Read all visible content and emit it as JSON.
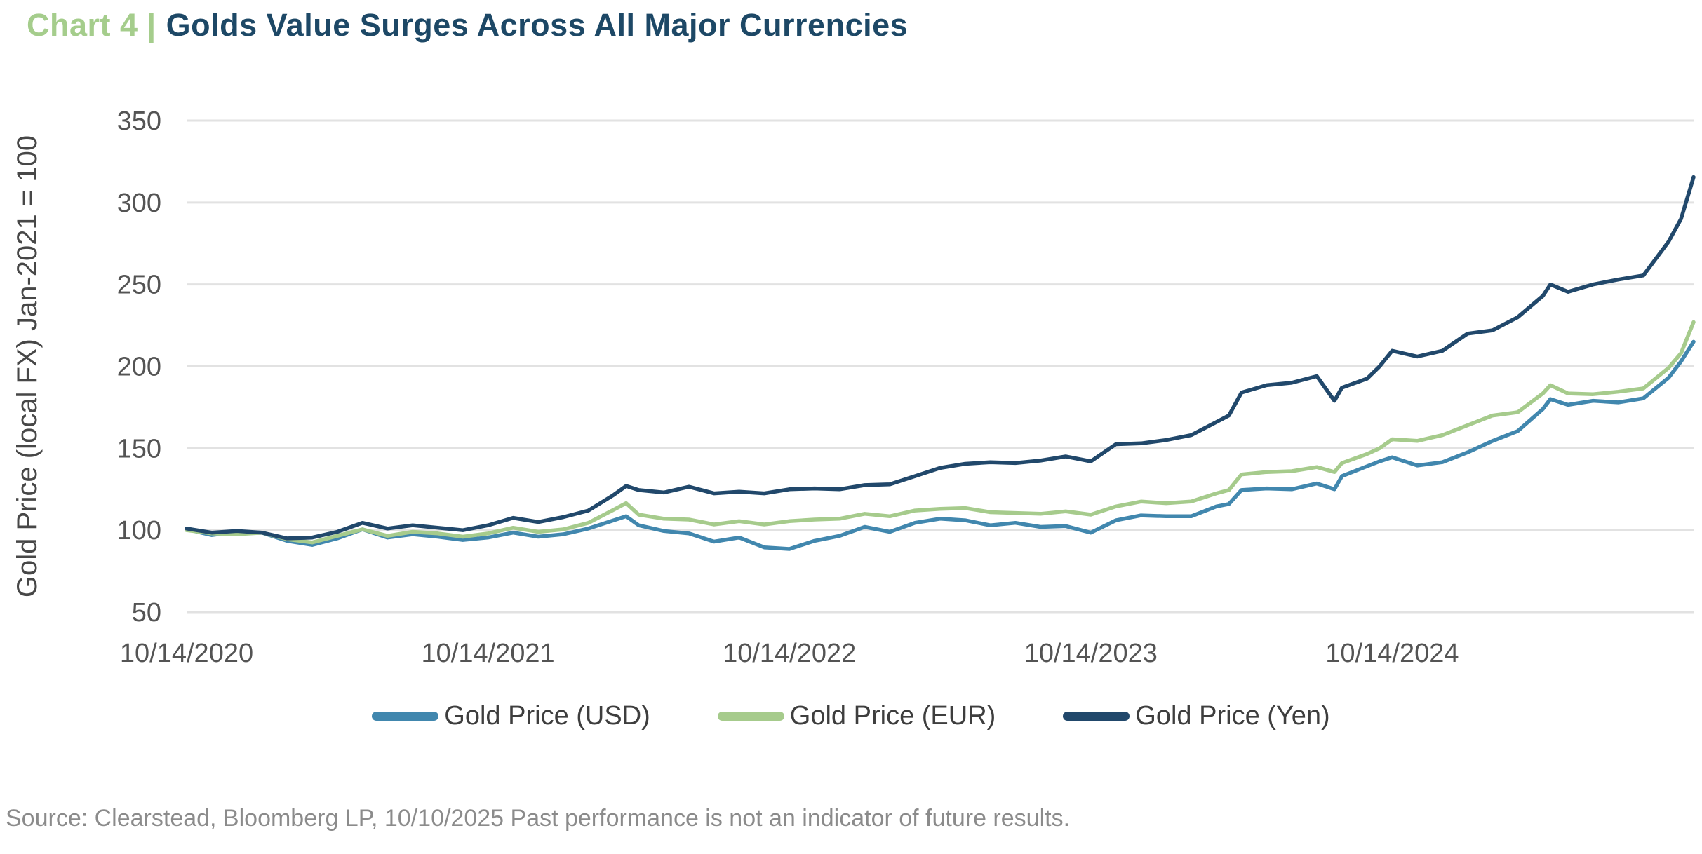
{
  "title": {
    "prefix": "Chart 4 |",
    "main": "Golds Value Surges Across All Major Currencies"
  },
  "source_note": "Source: Clearstead, Bloomberg LP, 10/10/2025 Past performance is not an indicator of future results.",
  "colors": {
    "title_prefix": "#a5cd8c",
    "title_main": "#1d4866",
    "usd_line": "#4187ae",
    "eur_line": "#a6cb8c",
    "yen_line": "#21486b",
    "gridline": "#e2e2e2",
    "tick_text": "#545454",
    "axis_title_text": "#474747",
    "legend_text": "#3e3e3e",
    "source_text": "#8b8b8b"
  },
  "chart_data": {
    "type": "line",
    "title": "Golds Value Surges Across All Major Currencies",
    "xlabel": "",
    "ylabel": "Gold Price (local FX) Jan-2021 = 100",
    "ylim": [
      50,
      350
    ],
    "y_ticks": [
      350,
      300,
      250,
      200,
      150,
      100,
      50
    ],
    "x_range_months": [
      0,
      60
    ],
    "x_unit": "months since 10/14/2020",
    "x_ticks": [
      {
        "label": "10/14/2020",
        "month": 0
      },
      {
        "label": "10/14/2021",
        "month": 12
      },
      {
        "label": "10/14/2022",
        "month": 24
      },
      {
        "label": "10/14/2023",
        "month": 36
      },
      {
        "label": "10/14/2024",
        "month": 48
      }
    ],
    "grid": "horizontal",
    "legend_position": "bottom",
    "x": [
      0,
      1,
      2,
      3,
      4,
      5,
      6,
      7,
      8,
      9,
      10,
      11,
      12,
      13,
      14,
      15,
      16,
      17,
      17.5,
      18,
      19,
      20,
      21,
      22,
      23,
      24,
      25,
      26,
      27,
      28,
      29,
      30,
      31,
      32,
      33,
      34,
      35,
      36,
      37,
      38,
      39,
      40,
      41,
      41.5,
      42,
      43,
      44,
      45,
      45.7,
      46,
      47,
      47.5,
      48,
      49,
      50,
      51,
      52,
      53,
      54,
      54.3,
      55,
      56,
      57,
      58,
      59,
      59.5,
      60
    ],
    "series": [
      {
        "name": "Gold Price (USD)",
        "color": "#4187ae",
        "values": [
          100.5,
          97,
          99,
          98.5,
          93.5,
          91,
          95,
          100.5,
          95.5,
          97.5,
          96,
          94,
          95.5,
          98.5,
          96,
          97.5,
          101,
          106,
          108.5,
          103,
          99.5,
          98,
          93,
          95.5,
          89.5,
          88.5,
          93.5,
          96.5,
          102,
          99,
          104.5,
          107,
          106,
          103,
          104.5,
          102,
          102.5,
          98.5,
          106,
          109,
          108.5,
          108.5,
          114.5,
          116,
          124.5,
          125.5,
          125,
          128.5,
          125,
          133,
          139,
          142,
          144.5,
          139.5,
          141.5,
          147.5,
          154.5,
          160.5,
          174,
          180,
          176.5,
          179,
          178,
          180.5,
          193,
          203,
          215
        ]
      },
      {
        "name": "Gold Price (EUR)",
        "color": "#a6cb8c",
        "values": [
          100,
          98,
          97.5,
          98.5,
          94.5,
          92.5,
          96.5,
          100.5,
          96.5,
          99,
          98,
          96,
          98,
          101.5,
          99,
          100.5,
          104.5,
          112.5,
          116.5,
          109.5,
          107,
          106.5,
          103.5,
          105.5,
          103.5,
          105.5,
          106.5,
          107,
          110,
          108.5,
          112,
          113,
          113.5,
          111,
          110.5,
          110,
          111.5,
          109.5,
          114.5,
          117.5,
          116.5,
          117.5,
          122.5,
          124.5,
          134,
          135.5,
          136,
          138.5,
          135.5,
          141,
          146.5,
          150,
          155.5,
          154.5,
          158,
          164,
          170,
          172,
          183.5,
          188.5,
          183.5,
          183,
          184.5,
          186.5,
          199,
          208,
          227
        ]
      },
      {
        "name": "Gold Price (Yen)",
        "color": "#21486b",
        "values": [
          101,
          98.5,
          99.5,
          98.5,
          95,
          95.5,
          99,
          104.5,
          101,
          103,
          101.5,
          100,
          103,
          107.5,
          105,
          108,
          112,
          121.5,
          127,
          124.5,
          123,
          126.5,
          122.5,
          123.5,
          122.5,
          125,
          125.5,
          125,
          127.5,
          128,
          133,
          138,
          140.5,
          141.5,
          141,
          142.5,
          145,
          142,
          152.5,
          153,
          155,
          158,
          166,
          170,
          184,
          188.5,
          190,
          194,
          179,
          187,
          192.5,
          200,
          209.5,
          206,
          209.5,
          220,
          222,
          230,
          243,
          250,
          245.5,
          250,
          253,
          255.5,
          276,
          290,
          315.5
        ]
      }
    ]
  }
}
